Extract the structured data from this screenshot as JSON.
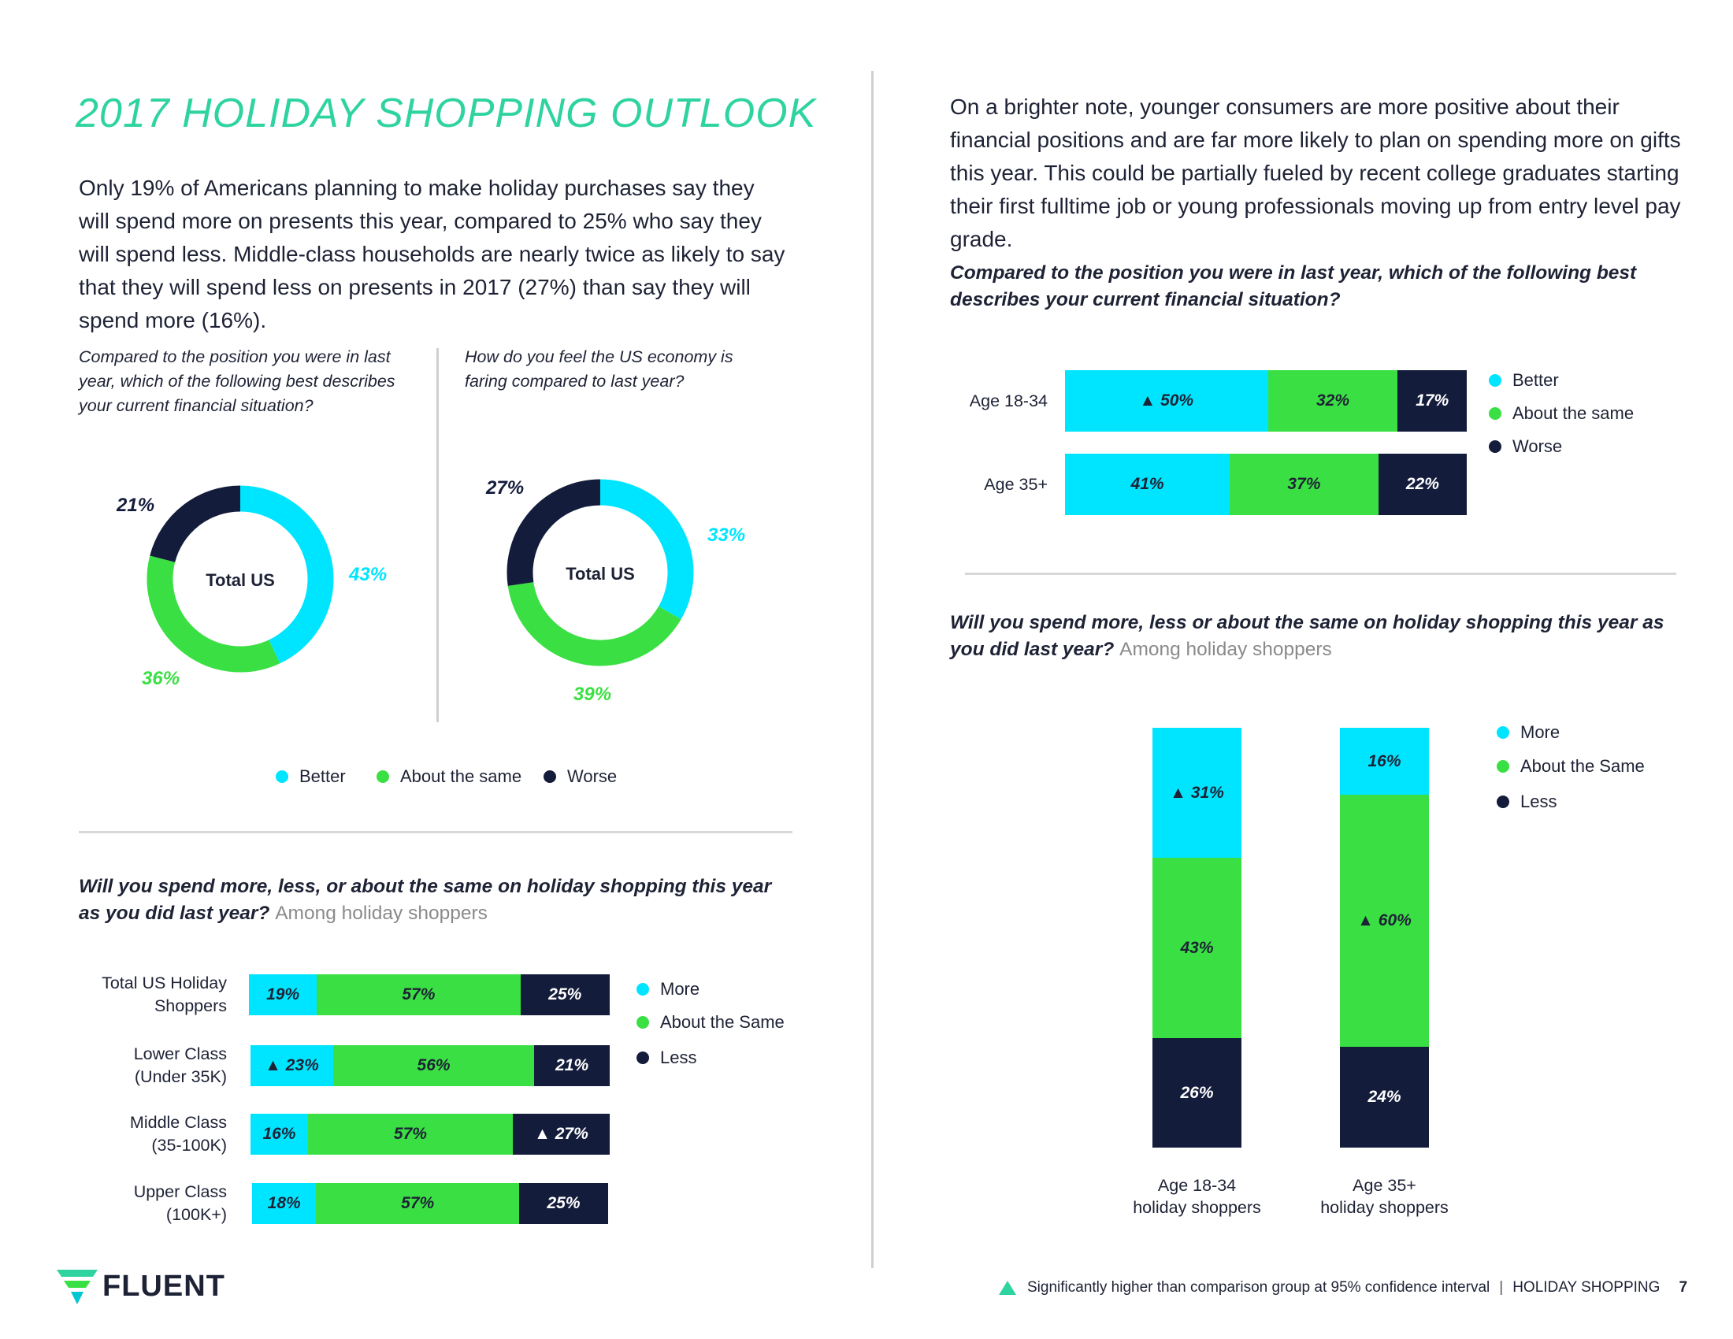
{
  "page": {
    "title": "2017 HOLIDAY SHOPPING OUTLOOK",
    "intro": "Only 19% of Americans planning to make holiday purchases say they will spend more on presents this year, compared to 25% who say they will spend less. Middle-class households are nearly twice as likely to say that they will spend less on presents in 2017 (27%) than say they will spend more (16%).",
    "right_intro": "On a brighter note, younger consumers are more positive about their financial positions and are far more likely to plan on spending more on gifts this year. This could be partially fueled by recent college graduates starting their first fulltime job or young professionals moving up from entry level pay grade.",
    "colors": {
      "better": "#00e5ff",
      "same": "#3ae043",
      "worse": "#141c3b",
      "accent": "#2ed3a0"
    },
    "footer": {
      "brand": "FLUENT",
      "note": "Significantly higher than comparison group at 95% confidence interval",
      "section": "HOLIDAY SHOPPING",
      "page_number": "7",
      "marker_icon": "triangle-up-icon"
    }
  },
  "chart_data": [
    {
      "type": "pie",
      "title": "Compared to the position you were in last year, which of the following best describes your current financial situation?",
      "center_label": "Total US",
      "categories": [
        "Better",
        "About the same",
        "Worse"
      ],
      "values": [
        43,
        36,
        21
      ],
      "labels": [
        "43%",
        "36%",
        "21%"
      ]
    },
    {
      "type": "pie",
      "title": "How do you feel the US economy is faring compared to last year?",
      "center_label": "Total US",
      "categories": [
        "Better",
        "About the same",
        "Worse"
      ],
      "values": [
        33,
        39,
        27
      ],
      "labels": [
        "33%",
        "39%",
        "27%"
      ],
      "legend": [
        "Better",
        "About the same",
        "Worse"
      ]
    },
    {
      "type": "bar",
      "orientation": "horizontal-stacked",
      "title": "Will you spend more, less, or about the same on holiday shopping this year as you did last year?",
      "subtitle": "Among holiday shoppers",
      "categories": [
        "Total US Holiday Shoppers",
        "Lower Class (Under 35K)",
        "Middle Class (35-100K)",
        "Upper Class (100K+)"
      ],
      "series": [
        {
          "name": "More",
          "values": [
            19,
            23,
            16,
            18
          ],
          "labels": [
            "19%",
            "23%",
            "16%",
            "18%"
          ],
          "significant": [
            false,
            true,
            false,
            false
          ]
        },
        {
          "name": "About the Same",
          "values": [
            57,
            56,
            57,
            57
          ],
          "labels": [
            "57%",
            "56%",
            "57%",
            "57%"
          ],
          "significant": [
            false,
            false,
            false,
            false
          ]
        },
        {
          "name": "Less",
          "values": [
            25,
            21,
            27,
            25
          ],
          "labels": [
            "25%",
            "21%",
            "27%",
            "25%"
          ],
          "significant": [
            false,
            false,
            true,
            false
          ]
        }
      ]
    },
    {
      "type": "bar",
      "orientation": "horizontal-stacked",
      "title": "Compared to the position you were in last year, which of the following best describes your current financial situation?",
      "categories": [
        "Age 18-34",
        "Age  35+"
      ],
      "series": [
        {
          "name": "Better",
          "values": [
            50,
            41
          ],
          "labels": [
            "50%",
            "41%"
          ],
          "significant": [
            true,
            false
          ]
        },
        {
          "name": "About the same",
          "values": [
            32,
            37
          ],
          "labels": [
            "32%",
            "37%"
          ],
          "significant": [
            false,
            false
          ]
        },
        {
          "name": "Worse",
          "values": [
            17,
            22
          ],
          "labels": [
            "17%",
            "22%"
          ],
          "significant": [
            false,
            false
          ]
        }
      ]
    },
    {
      "type": "bar",
      "orientation": "vertical-stacked",
      "title": "Will you spend more, less or about the same on holiday shopping this year as you did last year?",
      "subtitle": "Among holiday shoppers",
      "categories": [
        "Age 18-34 holiday shoppers",
        "Age 35+ holiday shoppers"
      ],
      "category_lines": [
        [
          "Age 18-34",
          "holiday shoppers"
        ],
        [
          "Age 35+",
          "holiday shoppers"
        ]
      ],
      "series": [
        {
          "name": "More",
          "values": [
            31,
            16
          ],
          "labels": [
            "31%",
            "16%"
          ],
          "significant": [
            true,
            false
          ]
        },
        {
          "name": "About the Same",
          "values": [
            43,
            60
          ],
          "labels": [
            "43%",
            "60%"
          ],
          "significant": [
            false,
            true
          ]
        },
        {
          "name": "Less",
          "values": [
            26,
            24
          ],
          "labels": [
            "26%",
            "24%"
          ],
          "significant": [
            false,
            false
          ]
        }
      ]
    }
  ]
}
